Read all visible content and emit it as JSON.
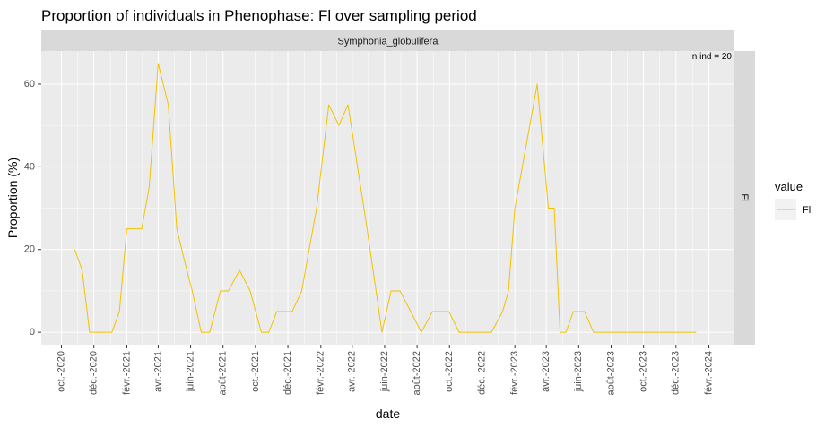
{
  "chart_data": {
    "type": "line",
    "title": "Proportion of individuals in Phenophase: Fl over sampling period",
    "facet_label": "Symphonia_globulifera",
    "row_strip_label": "Fl",
    "annotation": "n ind =  20",
    "xlabel": "date",
    "ylabel": "Proportion (%)",
    "xlim": [
      "2020-08-24",
      "2024-03-20"
    ],
    "ylim": [
      -3,
      68
    ],
    "x_ticks": [
      {
        "date": "2020-10-01",
        "label": "oct.-2020"
      },
      {
        "date": "2020-12-01",
        "label": "déc.-2020"
      },
      {
        "date": "2021-02-01",
        "label": "févr.-2021"
      },
      {
        "date": "2021-04-01",
        "label": "avr.-2021"
      },
      {
        "date": "2021-06-01",
        "label": "juin-2021"
      },
      {
        "date": "2021-08-01",
        "label": "août-2021"
      },
      {
        "date": "2021-10-01",
        "label": "oct.-2021"
      },
      {
        "date": "2021-12-01",
        "label": "déc.-2021"
      },
      {
        "date": "2022-02-01",
        "label": "févr.-2022"
      },
      {
        "date": "2022-04-01",
        "label": "avr.-2022"
      },
      {
        "date": "2022-06-01",
        "label": "juin-2022"
      },
      {
        "date": "2022-08-01",
        "label": "août-2022"
      },
      {
        "date": "2022-10-01",
        "label": "oct.-2022"
      },
      {
        "date": "2022-12-01",
        "label": "déc.-2022"
      },
      {
        "date": "2023-02-01",
        "label": "févr.-2023"
      },
      {
        "date": "2023-04-01",
        "label": "avr.-2023"
      },
      {
        "date": "2023-06-01",
        "label": "juin-2023"
      },
      {
        "date": "2023-08-01",
        "label": "août-2023"
      },
      {
        "date": "2023-10-01",
        "label": "oct.-2023"
      },
      {
        "date": "2023-12-01",
        "label": "déc.-2023"
      },
      {
        "date": "2024-02-01",
        "label": "févr.-2024"
      }
    ],
    "y_ticks": [
      0,
      20,
      40,
      60
    ],
    "grid": true,
    "legend": {
      "title": "value",
      "position": "right"
    },
    "series": [
      {
        "name": "Fl",
        "color": "#f2c200",
        "points": [
          {
            "x": "2020-10-26",
            "y": 20
          },
          {
            "x": "2020-11-09",
            "y": 15
          },
          {
            "x": "2020-11-23",
            "y": 0
          },
          {
            "x": "2020-12-07",
            "y": 0
          },
          {
            "x": "2020-12-21",
            "y": 0
          },
          {
            "x": "2021-01-04",
            "y": 0
          },
          {
            "x": "2021-01-18",
            "y": 5
          },
          {
            "x": "2021-02-01",
            "y": 25
          },
          {
            "x": "2021-02-15",
            "y": 25
          },
          {
            "x": "2021-03-01",
            "y": 25
          },
          {
            "x": "2021-03-15",
            "y": 35
          },
          {
            "x": "2021-04-01",
            "y": 65
          },
          {
            "x": "2021-04-20",
            "y": 55
          },
          {
            "x": "2021-05-06",
            "y": 25
          },
          {
            "x": "2021-05-21",
            "y": 17
          },
          {
            "x": "2021-06-04",
            "y": 10
          },
          {
            "x": "2021-06-21",
            "y": 0
          },
          {
            "x": "2021-07-07",
            "y": 0
          },
          {
            "x": "2021-07-27",
            "y": 10
          },
          {
            "x": "2021-08-11",
            "y": 10
          },
          {
            "x": "2021-09-01",
            "y": 15
          },
          {
            "x": "2021-09-21",
            "y": 10
          },
          {
            "x": "2021-10-12",
            "y": 0
          },
          {
            "x": "2021-10-26",
            "y": 0
          },
          {
            "x": "2021-11-10",
            "y": 5
          },
          {
            "x": "2021-11-24",
            "y": 5
          },
          {
            "x": "2021-12-09",
            "y": 5
          },
          {
            "x": "2021-12-27",
            "y": 10
          },
          {
            "x": "2022-01-24",
            "y": 30
          },
          {
            "x": "2022-02-16",
            "y": 55
          },
          {
            "x": "2022-03-07",
            "y": 50
          },
          {
            "x": "2022-03-24",
            "y": 55
          },
          {
            "x": "2022-04-29",
            "y": 25
          },
          {
            "x": "2022-05-27",
            "y": 0
          },
          {
            "x": "2022-06-13",
            "y": 10
          },
          {
            "x": "2022-06-30",
            "y": 10
          },
          {
            "x": "2022-07-20",
            "y": 5
          },
          {
            "x": "2022-08-09",
            "y": 0
          },
          {
            "x": "2022-08-30",
            "y": 5
          },
          {
            "x": "2022-09-19",
            "y": 5
          },
          {
            "x": "2022-09-30",
            "y": 5
          },
          {
            "x": "2022-10-19",
            "y": 0
          },
          {
            "x": "2022-11-08",
            "y": 0
          },
          {
            "x": "2022-11-28",
            "y": 0
          },
          {
            "x": "2022-12-19",
            "y": 0
          },
          {
            "x": "2023-01-09",
            "y": 5
          },
          {
            "x": "2023-01-20",
            "y": 10
          },
          {
            "x": "2023-02-01",
            "y": 30
          },
          {
            "x": "2023-02-22",
            "y": 45
          },
          {
            "x": "2023-03-15",
            "y": 60
          },
          {
            "x": "2023-04-05",
            "y": 30
          },
          {
            "x": "2023-04-16",
            "y": 30
          },
          {
            "x": "2023-04-27",
            "y": 0
          },
          {
            "x": "2023-05-08",
            "y": 0
          },
          {
            "x": "2023-05-22",
            "y": 5
          },
          {
            "x": "2023-06-12",
            "y": 5
          },
          {
            "x": "2023-06-29",
            "y": 0
          },
          {
            "x": "2023-07-24",
            "y": 0
          },
          {
            "x": "2023-08-21",
            "y": 0
          },
          {
            "x": "2023-09-18",
            "y": 0
          },
          {
            "x": "2023-10-16",
            "y": 0
          },
          {
            "x": "2023-11-13",
            "y": 0
          },
          {
            "x": "2023-12-11",
            "y": 0
          },
          {
            "x": "2024-01-08",
            "y": 0
          }
        ]
      }
    ]
  }
}
